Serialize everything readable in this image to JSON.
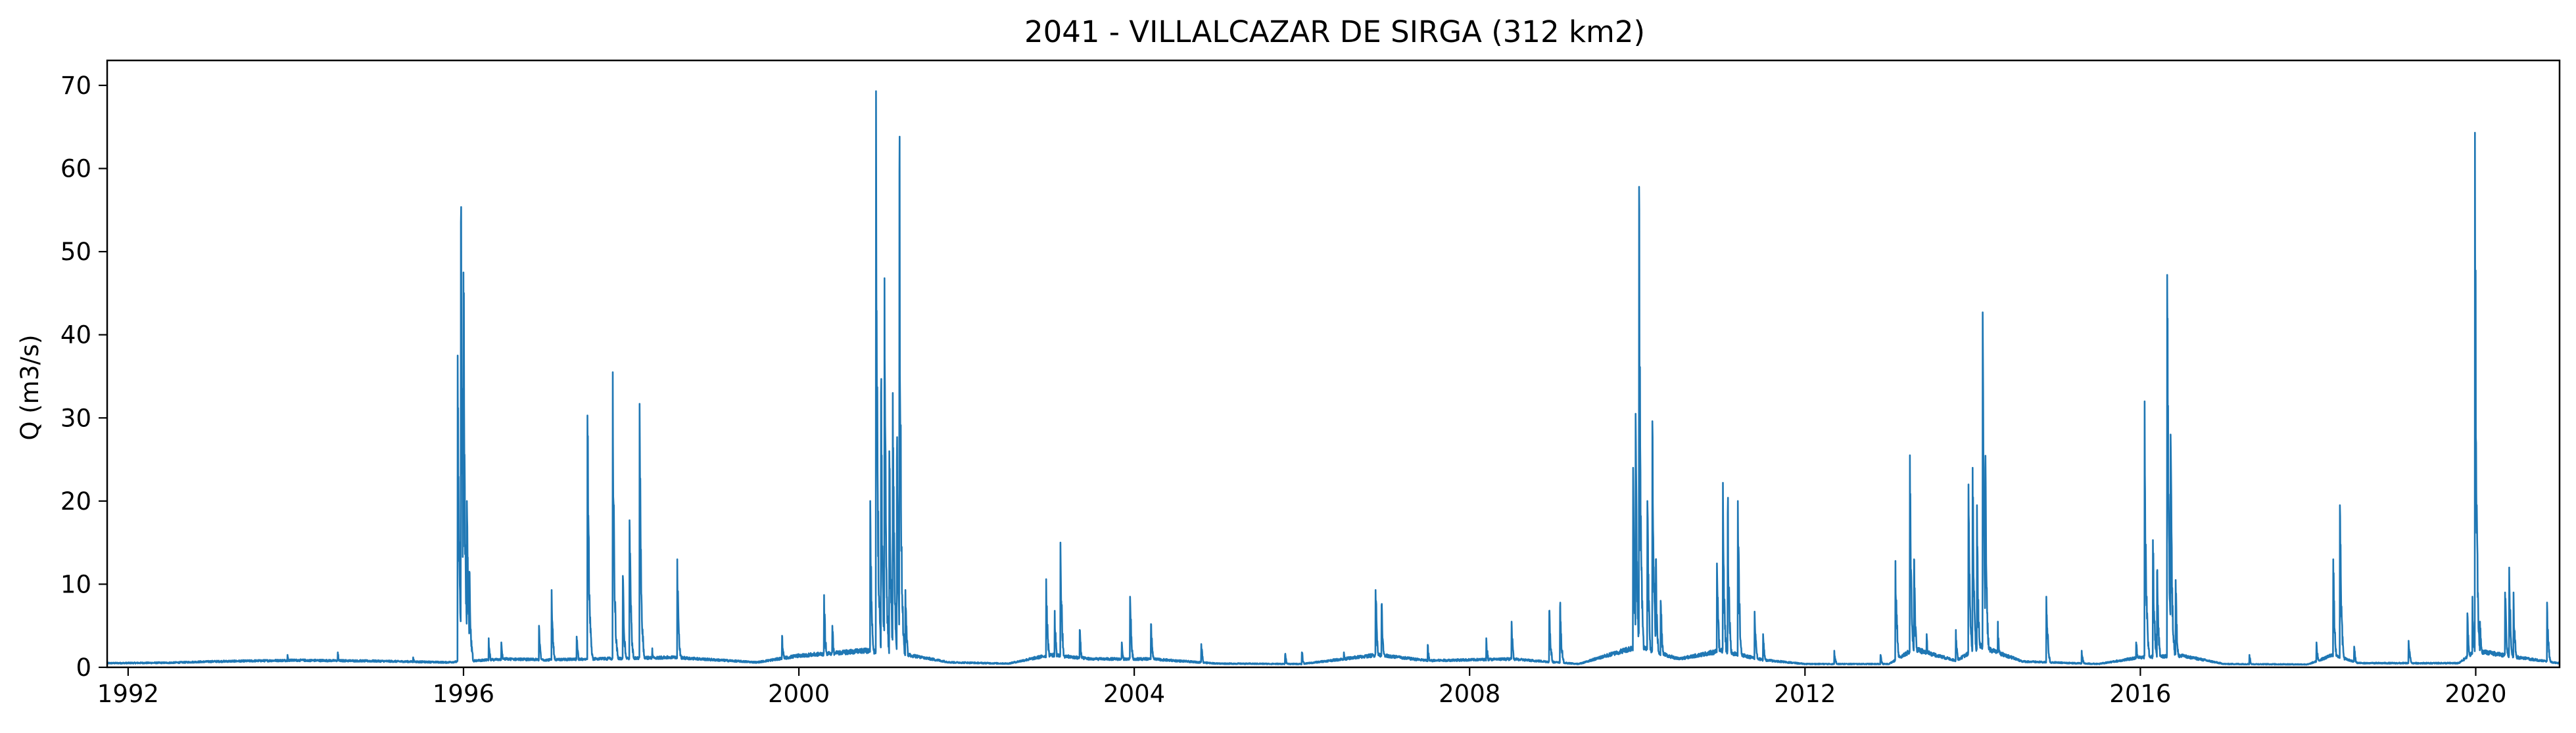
{
  "chart_data": {
    "type": "line",
    "title": "2041 - VILLALCAZAR DE SIRGA (312 km2)",
    "xlabel": "",
    "ylabel": "Q (m3/s)",
    "xlim": [
      1991.75,
      2021.0
    ],
    "ylim": [
      0,
      73
    ],
    "xticks": [
      1992,
      1996,
      2000,
      2004,
      2008,
      2012,
      2016,
      2020
    ],
    "yticks": [
      0,
      10,
      20,
      30,
      40,
      50,
      60,
      70
    ],
    "grid": false,
    "line_color": "#1f77b4",
    "baseflow": [
      [
        1991.75,
        0.5
      ],
      [
        1992.5,
        0.55
      ],
      [
        1993.0,
        0.7
      ],
      [
        1994.0,
        0.85
      ],
      [
        1995.0,
        0.75
      ],
      [
        1995.8,
        0.6
      ],
      [
        1996.5,
        1.0
      ],
      [
        1997.0,
        0.9
      ],
      [
        1998.5,
        1.2
      ],
      [
        1999.5,
        0.6
      ],
      [
        2000.0,
        1.4
      ],
      [
        2000.8,
        2.0
      ],
      [
        2001.3,
        1.5
      ],
      [
        2001.8,
        0.6
      ],
      [
        2002.5,
        0.45
      ],
      [
        2003.0,
        1.5
      ],
      [
        2003.5,
        1.0
      ],
      [
        2004.2,
        1.0
      ],
      [
        2005.0,
        0.45
      ],
      [
        2006.0,
        0.4
      ],
      [
        2006.9,
        1.5
      ],
      [
        2007.5,
        0.8
      ],
      [
        2008.5,
        1.0
      ],
      [
        2009.3,
        0.4
      ],
      [
        2010.0,
        2.5
      ],
      [
        2010.5,
        1.0
      ],
      [
        2011.0,
        2.0
      ],
      [
        2011.5,
        0.9
      ],
      [
        2012.0,
        0.4
      ],
      [
        2013.0,
        0.4
      ],
      [
        2013.3,
        2.2
      ],
      [
        2013.8,
        0.8
      ],
      [
        2014.1,
        2.5
      ],
      [
        2014.6,
        0.7
      ],
      [
        2015.5,
        0.4
      ],
      [
        2016.0,
        1.2
      ],
      [
        2016.5,
        1.4
      ],
      [
        2017.0,
        0.4
      ],
      [
        2018.0,
        0.35
      ],
      [
        2018.3,
        1.5
      ],
      [
        2018.6,
        0.5
      ],
      [
        2019.8,
        0.5
      ],
      [
        2020.0,
        2.0
      ],
      [
        2020.5,
        1.2
      ],
      [
        2021.0,
        0.5
      ]
    ],
    "peaks": [
      [
        1993.9,
        1.5
      ],
      [
        1994.5,
        1.8
      ],
      [
        1995.4,
        1.2
      ],
      [
        1995.93,
        37.5
      ],
      [
        1995.97,
        53.5
      ],
      [
        1996.0,
        47.5
      ],
      [
        1996.04,
        20
      ],
      [
        1996.07,
        11.5
      ],
      [
        1996.3,
        3.5
      ],
      [
        1996.45,
        3.0
      ],
      [
        1996.9,
        5.0
      ],
      [
        1997.05,
        9.3
      ],
      [
        1997.35,
        3.7
      ],
      [
        1997.48,
        30.3
      ],
      [
        1997.78,
        35.5
      ],
      [
        1997.9,
        11.0
      ],
      [
        1997.98,
        17.7
      ],
      [
        1998.1,
        31.7
      ],
      [
        1998.25,
        2.3
      ],
      [
        1998.55,
        13.0
      ],
      [
        1999.8,
        3.8
      ],
      [
        2000.3,
        8.7
      ],
      [
        2000.4,
        5.0
      ],
      [
        2000.85,
        20.0
      ],
      [
        2000.92,
        69.3
      ],
      [
        2000.98,
        33.0
      ],
      [
        2001.02,
        46.8
      ],
      [
        2001.08,
        26.0
      ],
      [
        2001.12,
        33.0
      ],
      [
        2001.17,
        25.0
      ],
      [
        2001.2,
        59.6
      ],
      [
        2001.27,
        9.3
      ],
      [
        2002.95,
        10.6
      ],
      [
        2003.05,
        6.8
      ],
      [
        2003.12,
        15.0
      ],
      [
        2003.35,
        4.5
      ],
      [
        2003.85,
        3.0
      ],
      [
        2003.95,
        8.5
      ],
      [
        2004.2,
        5.2
      ],
      [
        2004.8,
        2.8
      ],
      [
        2005.8,
        1.5
      ],
      [
        2006.0,
        1.8
      ],
      [
        2006.5,
        1.8
      ],
      [
        2006.88,
        9.3
      ],
      [
        2006.95,
        7.5
      ],
      [
        2007.5,
        2.7
      ],
      [
        2008.2,
        3.5
      ],
      [
        2008.5,
        5.5
      ],
      [
        2008.95,
        6.8
      ],
      [
        2009.08,
        7.2
      ],
      [
        2009.95,
        24.0
      ],
      [
        2009.98,
        30.5
      ],
      [
        2010.02,
        57.8
      ],
      [
        2010.12,
        20.0
      ],
      [
        2010.18,
        29.6
      ],
      [
        2010.22,
        13.0
      ],
      [
        2010.28,
        8.0
      ],
      [
        2010.95,
        12.5
      ],
      [
        2011.02,
        22.2
      ],
      [
        2011.08,
        18.5
      ],
      [
        2011.2,
        20.0
      ],
      [
        2011.4,
        6.7
      ],
      [
        2011.5,
        4.0
      ],
      [
        2012.35,
        2.0
      ],
      [
        2012.9,
        1.5
      ],
      [
        2013.08,
        12.8
      ],
      [
        2013.25,
        25.5
      ],
      [
        2013.3,
        13.0
      ],
      [
        2013.45,
        4.0
      ],
      [
        2013.8,
        4.5
      ],
      [
        2013.95,
        22.0
      ],
      [
        2014.0,
        24.0
      ],
      [
        2014.05,
        19.5
      ],
      [
        2014.12,
        42.7
      ],
      [
        2014.15,
        24.0
      ],
      [
        2014.3,
        5.5
      ],
      [
        2014.88,
        8.5
      ],
      [
        2015.3,
        2.0
      ],
      [
        2015.95,
        3.0
      ],
      [
        2016.05,
        32.0
      ],
      [
        2016.15,
        15.3
      ],
      [
        2016.2,
        11.5
      ],
      [
        2016.32,
        47.2
      ],
      [
        2016.36,
        28.0
      ],
      [
        2016.42,
        10.5
      ],
      [
        2017.3,
        1.5
      ],
      [
        2018.1,
        3.0
      ],
      [
        2018.3,
        13.0
      ],
      [
        2018.38,
        19.5
      ],
      [
        2018.55,
        2.5
      ],
      [
        2019.2,
        3.2
      ],
      [
        2019.9,
        6.5
      ],
      [
        2019.96,
        8.5
      ],
      [
        2019.99,
        64.3
      ],
      [
        2020.05,
        5.5
      ],
      [
        2020.35,
        9.0
      ],
      [
        2020.4,
        12.0
      ],
      [
        2020.45,
        9.0
      ],
      [
        2020.85,
        7.8
      ]
    ]
  }
}
